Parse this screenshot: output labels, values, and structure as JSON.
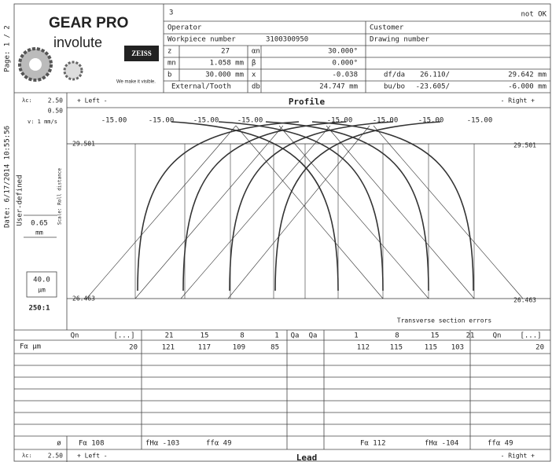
{
  "sidebar": {
    "page": "Page:  1 / 2",
    "date": "Date: 6/17/2014  10:55:56"
  },
  "logo": {
    "title": "GEAR PRO",
    "subtitle": "involute",
    "brand": "ZEISS",
    "slogan": "We make it visible."
  },
  "header": {
    "report_no": "3",
    "status": "not OK"
  },
  "info": {
    "rows": [
      [
        "Operator",
        "Customer"
      ],
      [
        "Workpiece number",
        "3100300950",
        "Drawing number"
      ],
      [
        "z",
        "27",
        "αn",
        "30.000°"
      ],
      [
        "mn",
        "1.058 mm",
        "β",
        "0.000°"
      ],
      [
        "b",
        "30.000 mm",
        "x",
        "-0.038",
        "df/da",
        "26.110/",
        "29.642 mm"
      ],
      [
        "External/Tooth",
        "db",
        "24.747 mm",
        "bu/bo",
        "-23.605/",
        "-6.000 mm"
      ]
    ]
  },
  "profile": {
    "lambda": "λc:",
    "lambda_value": "2.50",
    "probe_value": "0.50",
    "speed": "v:  1 mm/s",
    "filter": "User-defined",
    "scale_label": "Scale: Roll distance",
    "roll_value": "0.65",
    "roll_unit": "mm",
    "dev_value": "40.0",
    "dev_unit": "µm",
    "magnification": "250:1",
    "left": "+ Left -",
    "title": "Profile",
    "right": "- Right +",
    "tol_labels": [
      "-15.00",
      "-15.00",
      "-15.00",
      "-15.00",
      "-15.00",
      "-15.00",
      "-15.00",
      "-15.00"
    ],
    "top_level": "29.501",
    "bottom_level": "26.463",
    "note": "Transverse section errors"
  },
  "quality_row": [
    "Qn",
    "[...]",
    "21",
    "15",
    "8",
    "1",
    "Qa",
    "Qa",
    "1",
    "8",
    "15",
    "21",
    "Qn",
    "[...]"
  ],
  "f_alpha_row": {
    "label": "Fα   µm",
    "left": [
      "20",
      "121",
      "117",
      "109",
      "85"
    ],
    "right": [
      "112",
      "115",
      "115",
      "103",
      "20"
    ]
  },
  "summary": [
    "ø",
    "Fα 108",
    "fHα -103",
    "ffα 49",
    "Fα 112",
    "fHα -104",
    "ffα 49"
  ],
  "lead": {
    "lambda": "λc:",
    "lambda_value": "2.50",
    "left": "+ Left -",
    "title": "Lead",
    "right": "- Right +"
  }
}
